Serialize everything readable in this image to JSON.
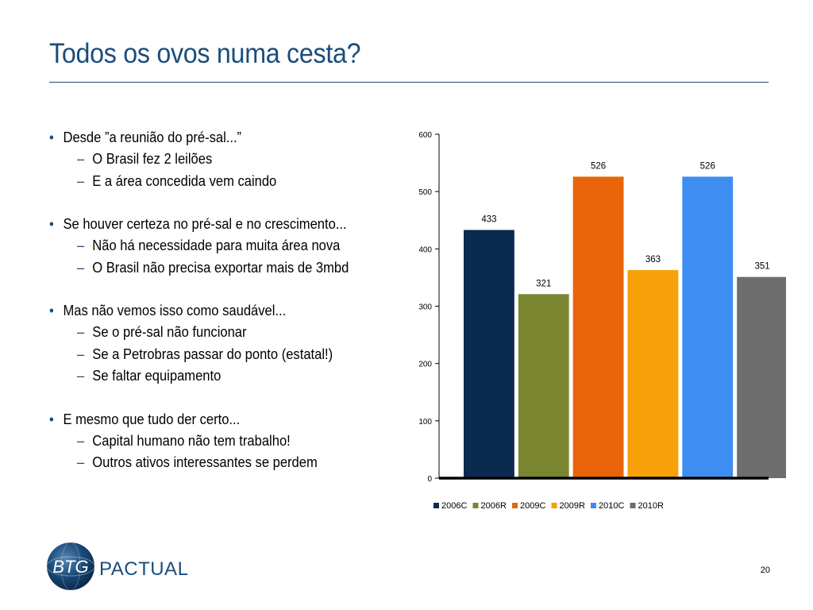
{
  "slide": {
    "title": "Todos os ovos numa cesta?",
    "page_number": "20",
    "bullets": [
      {
        "text": "Desde ”a reunião do pré-sal...”",
        "subs": [
          "O Brasil fez 2 leilões",
          "E a área concedida vem caindo"
        ]
      },
      {
        "text": "Se houver certeza no pré-sal e no crescimento...",
        "subs": [
          "Não há necessidade para muita área nova",
          "O Brasil não precisa exportar mais de 3mbd"
        ]
      },
      {
        "text": "Mas não vemos isso como saudável...",
        "subs": [
          "Se o pré-sal não funcionar",
          "Se a Petrobras passar do ponto (estatal!)",
          "Se faltar equipamento"
        ]
      },
      {
        "text": "E mesmo que tudo der certo...",
        "subs": [
          "Capital humano não tem trabalho!",
          "Outros ativos interessantes se perdem"
        ]
      }
    ]
  },
  "logo": {
    "monogram": "BTG",
    "wordmark": "PACTUAL"
  },
  "colors": {
    "title": "#1a4d7c",
    "rule": "#1a4d7c"
  },
  "chart_data": {
    "type": "bar",
    "categories": [
      "2006C",
      "2006R",
      "2009C",
      "2009R",
      "2010C",
      "2010R"
    ],
    "values": [
      433,
      321,
      526,
      363,
      526,
      351
    ],
    "colors": [
      "#0b2a4f",
      "#7a8530",
      "#e8650a",
      "#f7a00a",
      "#3d8ef0",
      "#6d6d6d"
    ],
    "ylim": [
      0,
      600
    ],
    "yticks": [
      0,
      100,
      200,
      300,
      400,
      500,
      600
    ],
    "legend": "bottom",
    "grid": false,
    "title": "",
    "xlabel": "",
    "ylabel": ""
  }
}
